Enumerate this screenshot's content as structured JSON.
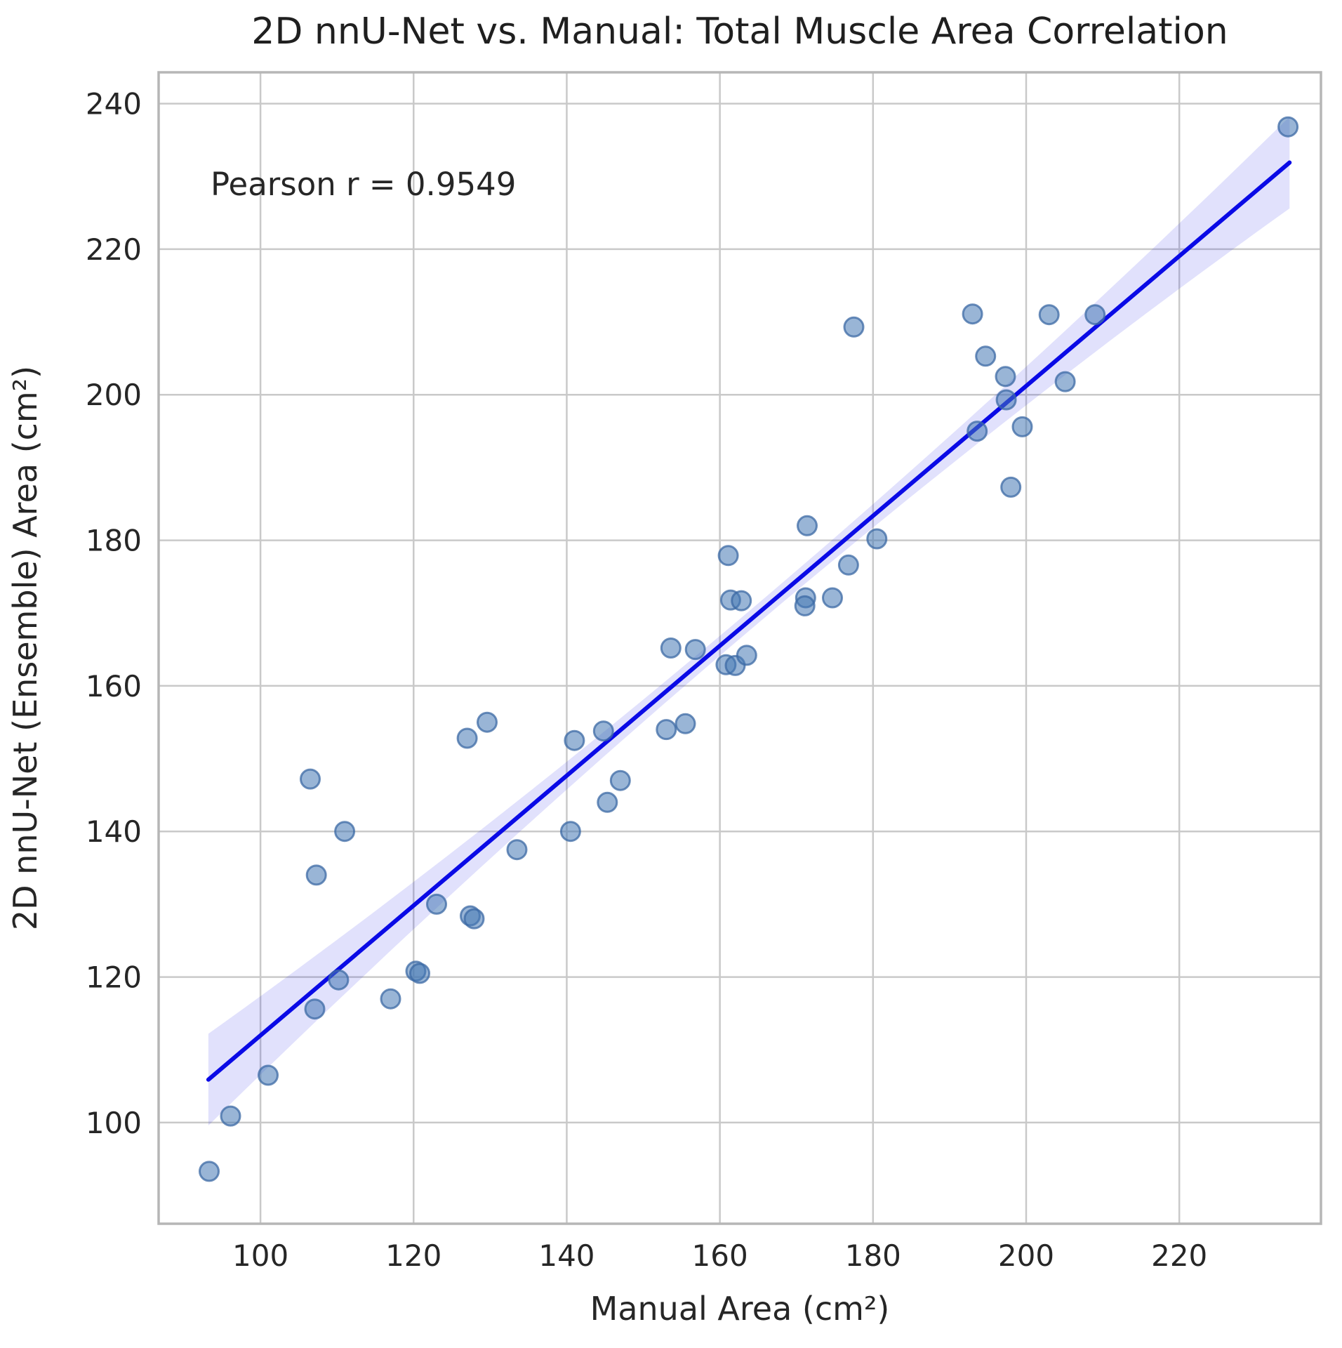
{
  "chart_data": {
    "type": "scatter",
    "title": "2D nnU-Net vs. Manual: Total Muscle Area Correlation",
    "xlabel": "Manual Area (cm²)",
    "ylabel": "2D nnU-Net (Ensemble) Area (cm²)",
    "annotation": "Pearson r = 0.9549",
    "xlim": [
      86.7,
      238.5
    ],
    "ylim": [
      86.1,
      244.3
    ],
    "xticks": [
      100,
      120,
      140,
      160,
      180,
      200,
      220
    ],
    "yticks": [
      100,
      120,
      140,
      160,
      180,
      200,
      220,
      240
    ],
    "grid": true,
    "legend": false,
    "points": [
      [
        93.3,
        93.3
      ],
      [
        96.1,
        100.9
      ],
      [
        101.0,
        106.5
      ],
      [
        107.1,
        115.6
      ],
      [
        110.2,
        119.6
      ],
      [
        117.0,
        117.0
      ],
      [
        120.3,
        120.8
      ],
      [
        120.8,
        120.5
      ],
      [
        106.5,
        147.2
      ],
      [
        111.0,
        140.0
      ],
      [
        107.3,
        134.0
      ],
      [
        123.0,
        130.0
      ],
      [
        127.4,
        128.4
      ],
      [
        127.9,
        128.0
      ],
      [
        127.0,
        152.8
      ],
      [
        129.6,
        155.0
      ],
      [
        133.5,
        137.5
      ],
      [
        140.5,
        140.0
      ],
      [
        141.0,
        152.5
      ],
      [
        144.8,
        153.8
      ],
      [
        147.0,
        147.0
      ],
      [
        145.3,
        144.0
      ],
      [
        153.0,
        154.0
      ],
      [
        155.5,
        154.8
      ],
      [
        153.6,
        165.2
      ],
      [
        156.8,
        165.0
      ],
      [
        160.8,
        162.9
      ],
      [
        162.0,
        162.8
      ],
      [
        163.5,
        164.2
      ],
      [
        161.4,
        171.8
      ],
      [
        162.8,
        171.7
      ],
      [
        161.1,
        177.9
      ],
      [
        171.4,
        182.0
      ],
      [
        171.2,
        172.1
      ],
      [
        171.1,
        171.0
      ],
      [
        174.7,
        172.1
      ],
      [
        176.8,
        176.6
      ],
      [
        180.5,
        180.2
      ],
      [
        177.5,
        209.3
      ],
      [
        193.0,
        211.1
      ],
      [
        194.7,
        205.3
      ],
      [
        197.3,
        202.5
      ],
      [
        197.4,
        199.3
      ],
      [
        193.6,
        195.0
      ],
      [
        199.5,
        195.6
      ],
      [
        198.0,
        187.3
      ],
      [
        205.1,
        201.8
      ],
      [
        203.0,
        211.0
      ],
      [
        209.0,
        211.0
      ],
      [
        234.2,
        236.8
      ]
    ],
    "regression_line": {
      "x_start": 93.2,
      "y_start": 105.9,
      "x_end": 234.4,
      "y_end": 231.9
    },
    "confidence_band": {
      "half_width_center": 1.35,
      "half_width_edge": 6.3
    },
    "colors": {
      "marker_fill": "#4678b4",
      "marker_edge": "#3c6aa4",
      "line": "#0a0ae6",
      "band": "#1414e6",
      "grid": "#c9c9c9",
      "spine": "#b6b6b6",
      "text": "#262626"
    }
  }
}
